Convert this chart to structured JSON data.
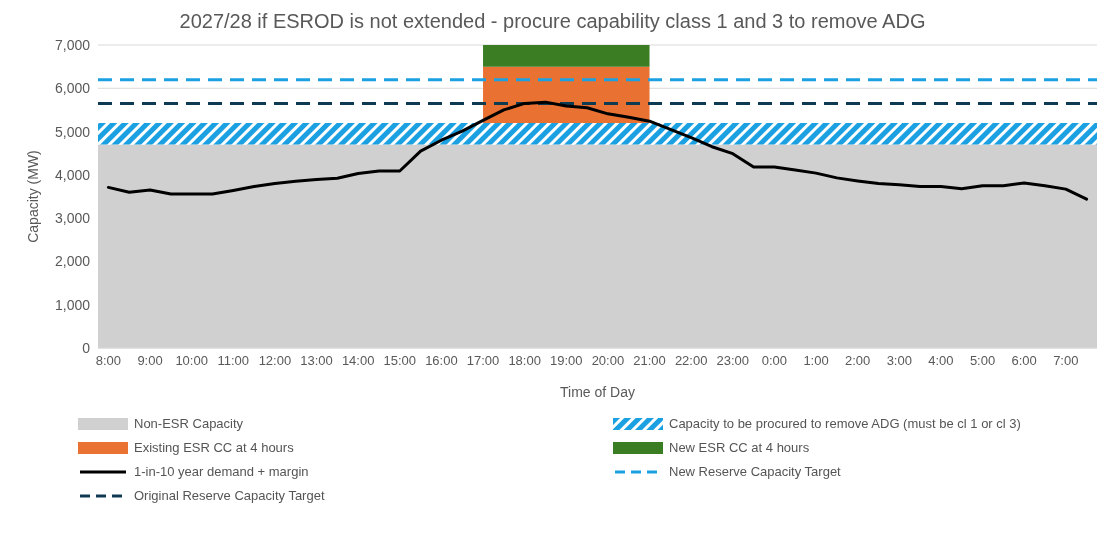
{
  "chart_data": {
    "type": "bar",
    "title": "2027/28 if ESROD is not extended - procure capability class 1 and 3 to remove ADG",
    "xlabel": "Time of Day",
    "ylabel": "Capacity (MW)",
    "series": [
      {
        "name": "Existing ESR CC at 4 hours",
        "color": "#e97132",
        "x": [
          "2000-01-01T19:00"
        ],
        "base": [
          5200
        ],
        "values": [
          1300
        ]
      },
      {
        "name": "New ESR CC at 4 hours",
        "color": "#3a7d22",
        "x": [
          "2000-01-01T19:00"
        ],
        "base": [
          6500
        ],
        "values": [
          500
        ]
      },
      {
        "name": "1-in-10 year demand + margin",
        "type": "line",
        "color": "#000000",
        "x": [
          "2000-01-01T08:00",
          "2000-01-01T08:30",
          "2000-01-01T09:00",
          "2000-01-01T09:30",
          "2000-01-01T10:00",
          "2000-01-01T10:30",
          "2000-01-01T11:00",
          "2000-01-01T11:30",
          "2000-01-01T12:00",
          "2000-01-01T12:30",
          "2000-01-01T13:00",
          "2000-01-01T13:30",
          "2000-01-01T14:00",
          "2000-01-01T14:30",
          "2000-01-01T15:00",
          "2000-01-01T15:30",
          "2000-01-01T16:00",
          "2000-01-01T16:30",
          "2000-01-01T17:00",
          "2000-01-01T17:30",
          "2000-01-01T18:00",
          "2000-01-01T18:30",
          "2000-01-01T19:00",
          "2000-01-01T19:30",
          "2000-01-01T20:00",
          "2000-01-01T20:30",
          "2000-01-01T21:00",
          "2000-01-01T21:30",
          "2000-01-01T22:00",
          "2000-01-01T22:30",
          "2000-01-01T23:00",
          "2000-01-01T23:30",
          "2000-01-02T00:00",
          "2000-01-02T00:30",
          "2000-01-02T01:00",
          "2000-01-02T01:30",
          "2000-01-02T02:00",
          "2000-01-02T02:30",
          "2000-01-02T03:00",
          "2000-01-02T03:30",
          "2000-01-02T04:00",
          "2000-01-02T04:30",
          "2000-01-02T05:00",
          "2000-01-02T05:30",
          "2000-01-02T06:00",
          "2000-01-02T06:30",
          "2000-01-02T07:00",
          "2000-01-02T07:30"
        ],
        "values": [
          3710,
          3600,
          3650,
          3560,
          3560,
          3560,
          3640,
          3730,
          3800,
          3850,
          3890,
          3920,
          4030,
          4090,
          4090,
          4550,
          4800,
          5010,
          5260,
          5500,
          5650,
          5680,
          5590,
          5550,
          5410,
          5330,
          5240,
          5050,
          4860,
          4650,
          4490,
          4180,
          4180,
          4110,
          4040,
          3930,
          3860,
          3800,
          3770,
          3730,
          3730,
          3680,
          3750,
          3750,
          3810,
          3750,
          3670,
          3440
        ]
      }
    ],
    "bands": [
      {
        "axis": "y",
        "from": 0,
        "to": 4700,
        "label": "Non-ESR Capacity",
        "color": "#d0d0d0"
      },
      {
        "axis": "y",
        "from": 4700,
        "to": 5200,
        "label": "Capacity to be procured to remove ADG (must be cl 1 or cl 3)",
        "color": "#1ba1e2"
      }
    ],
    "ref_lines": [
      {
        "axis": "y",
        "value": 6200,
        "label": "New Reserve Capacity Target",
        "color": "#1ba1e2",
        "line_style": "dashed"
      },
      {
        "axis": "y",
        "value": 5650,
        "label": "Original Reserve Capacity Target",
        "color": "#0e3a52",
        "line_style": "dashed"
      }
    ],
    "xlim": [
      "2000-01-01T07:45",
      "2000-01-02T07:45"
    ],
    "xticks": [
      {
        "value": "2000-01-01T08:00",
        "label": "8:00"
      },
      {
        "value": "2000-01-01T09:00",
        "label": "9:00"
      },
      {
        "value": "2000-01-01T10:00",
        "label": "10:00"
      },
      {
        "value": "2000-01-01T11:00",
        "label": "11:00"
      },
      {
        "value": "2000-01-01T12:00",
        "label": "12:00"
      },
      {
        "value": "2000-01-01T13:00",
        "label": "13:00"
      },
      {
        "value": "2000-01-01T14:00",
        "label": "14:00"
      },
      {
        "value": "2000-01-01T15:00",
        "label": "15:00"
      },
      {
        "value": "2000-01-01T16:00",
        "label": "16:00"
      },
      {
        "value": "2000-01-01T17:00",
        "label": "17:00"
      },
      {
        "value": "2000-01-01T18:00",
        "label": "18:00"
      },
      {
        "value": "2000-01-01T19:00",
        "label": "19:00"
      },
      {
        "value": "2000-01-01T20:00",
        "label": "20:00"
      },
      {
        "value": "2000-01-01T21:00",
        "label": "21:00"
      },
      {
        "value": "2000-01-01T22:00",
        "label": "22:00"
      },
      {
        "value": "2000-01-01T23:00",
        "label": "23:00"
      },
      {
        "value": "2000-01-02T00:00",
        "label": "0:00"
      },
      {
        "value": "2000-01-02T01:00",
        "label": "1:00"
      },
      {
        "value": "2000-01-02T02:00",
        "label": "2:00"
      },
      {
        "value": "2000-01-02T03:00",
        "label": "3:00"
      },
      {
        "value": "2000-01-02T04:00",
        "label": "4:00"
      },
      {
        "value": "2000-01-02T05:00",
        "label": "5:00"
      },
      {
        "value": "2000-01-02T06:00",
        "label": "6:00"
      },
      {
        "value": "2000-01-02T07:00",
        "label": "7:00"
      }
    ],
    "ylim": [
      0,
      7000
    ],
    "yticks": [
      0,
      {
        "value": 1000,
        "label": "1,000"
      },
      {
        "value": 2000,
        "label": "2,000"
      },
      {
        "value": 3000,
        "label": "3,000"
      },
      {
        "value": 4000,
        "label": "4,000"
      },
      {
        "value": 5000,
        "label": "5,000"
      },
      {
        "value": 6000,
        "label": "6,000"
      },
      {
        "value": 7000,
        "label": "7,000"
      }
    ],
    "grid": "y",
    "legend": "bottom",
    "marker": "none",
    "line_style": "solid"
  }
}
